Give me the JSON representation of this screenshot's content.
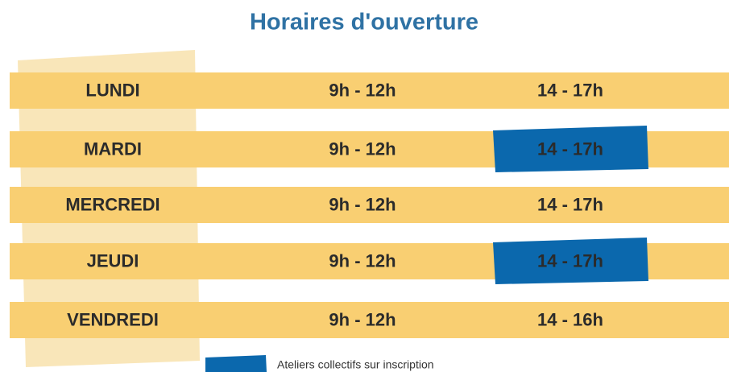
{
  "header": {
    "title": "Horaires d'ouverture"
  },
  "table": {
    "rows": [
      {
        "day": "LUNDI",
        "morning": "9h - 12h",
        "afternoon": "14 - 17h",
        "atelier": false
      },
      {
        "day": "MARDI",
        "morning": "9h - 12h",
        "afternoon": "14 - 17h",
        "atelier": true
      },
      {
        "day": "MERCREDI",
        "morning": "9h - 12h",
        "afternoon": "14 - 17h",
        "atelier": false
      },
      {
        "day": "JEUDI",
        "morning": "9h - 12h",
        "afternoon": "14 - 17h",
        "atelier": true
      },
      {
        "day": "VENDREDI",
        "morning": "9h - 12h",
        "afternoon": "14 - 16h",
        "atelier": false
      }
    ]
  },
  "legend": {
    "label": "Ateliers collectifs sur inscription"
  }
}
